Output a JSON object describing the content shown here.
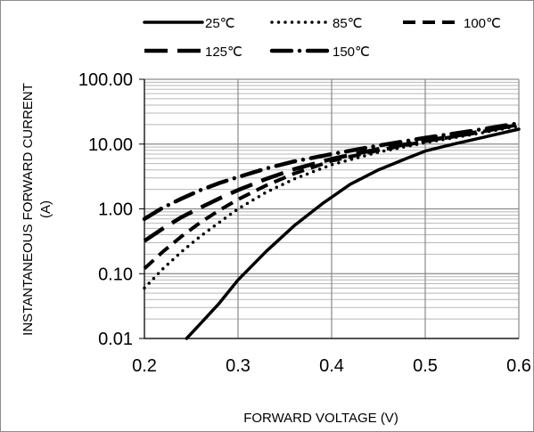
{
  "chart_data": {
    "type": "line",
    "title": "",
    "xlabel": "FORWARD VOLTAGE (V)",
    "ylabel_line1": "INSTANTANEOUS FORWARD CURRENT",
    "ylabel_line2": "(A)",
    "xlim": [
      0.2,
      0.6
    ],
    "ylim": [
      0.01,
      100
    ],
    "yscale": "log",
    "x_ticks": [
      "0.2",
      "0.3",
      "0.4",
      "0.5",
      "0.6"
    ],
    "y_ticks": [
      "0.01",
      "0.10",
      "1.00",
      "10.00",
      "100.00"
    ],
    "grid": true,
    "legend_position": "top",
    "series": [
      {
        "name": "25℃",
        "style": "solid",
        "x": [
          0.245,
          0.26,
          0.28,
          0.3,
          0.33,
          0.36,
          0.39,
          0.42,
          0.45,
          0.48,
          0.5,
          0.53,
          0.56,
          0.6
        ],
        "y": [
          0.01,
          0.017,
          0.035,
          0.08,
          0.22,
          0.55,
          1.2,
          2.4,
          4.0,
          6.0,
          7.8,
          10.0,
          12.5,
          17.0
        ]
      },
      {
        "name": "85℃",
        "style": "dotted",
        "x": [
          0.2,
          0.22,
          0.24,
          0.26,
          0.28,
          0.3,
          0.33,
          0.36,
          0.4,
          0.45,
          0.5,
          0.55,
          0.6
        ],
        "y": [
          0.06,
          0.12,
          0.22,
          0.38,
          0.62,
          1.0,
          1.8,
          2.9,
          4.8,
          7.5,
          10.5,
          14.0,
          19.0
        ]
      },
      {
        "name": "100℃",
        "style": "dashed",
        "x": [
          0.2,
          0.22,
          0.24,
          0.26,
          0.28,
          0.3,
          0.33,
          0.36,
          0.4,
          0.45,
          0.5,
          0.55,
          0.6
        ],
        "y": [
          0.12,
          0.22,
          0.38,
          0.62,
          0.95,
          1.4,
          2.3,
          3.5,
          5.5,
          8.0,
          11.0,
          14.5,
          20.0
        ]
      },
      {
        "name": "125℃",
        "style": "longdash",
        "x": [
          0.2,
          0.22,
          0.24,
          0.26,
          0.28,
          0.3,
          0.33,
          0.36,
          0.4,
          0.45,
          0.5,
          0.55,
          0.6
        ],
        "y": [
          0.32,
          0.5,
          0.75,
          1.05,
          1.45,
          1.95,
          2.9,
          4.1,
          5.9,
          8.4,
          11.2,
          14.8,
          20.0
        ]
      },
      {
        "name": "150℃",
        "style": "dashdot",
        "x": [
          0.2,
          0.22,
          0.24,
          0.26,
          0.28,
          0.3,
          0.33,
          0.36,
          0.4,
          0.45,
          0.5,
          0.55,
          0.6
        ],
        "y": [
          0.7,
          1.05,
          1.45,
          1.95,
          2.5,
          3.1,
          4.2,
          5.4,
          7.0,
          9.5,
          12.5,
          16.0,
          21.0
        ]
      }
    ]
  }
}
